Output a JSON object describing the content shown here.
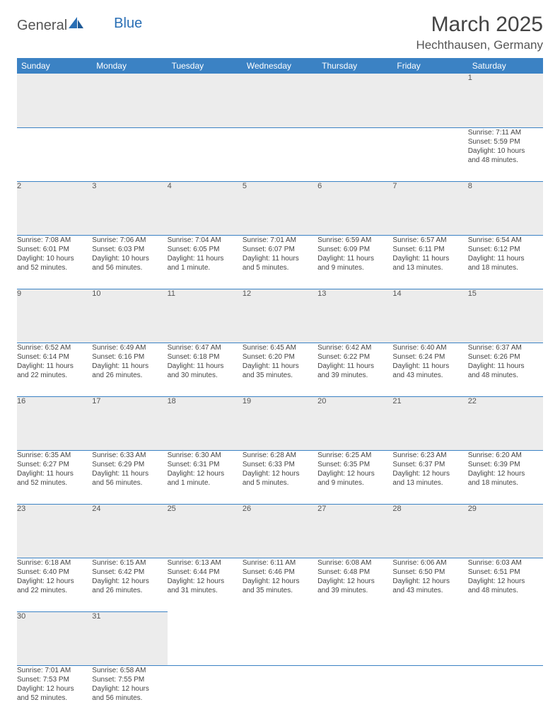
{
  "brand": {
    "part1": "General",
    "part2": "Blue"
  },
  "title": "March 2025",
  "location": "Hechthausen, Germany",
  "colors": {
    "header_bg": "#3b82c4",
    "header_text": "#ffffff",
    "daynum_bg": "#ececec",
    "border": "#3b82c4",
    "text": "#444444",
    "brand_blue": "#2a6fb5"
  },
  "weekdays": [
    "Sunday",
    "Monday",
    "Tuesday",
    "Wednesday",
    "Thursday",
    "Friday",
    "Saturday"
  ],
  "weeks": [
    [
      null,
      null,
      null,
      null,
      null,
      null,
      {
        "n": "1",
        "sr": "Sunrise: 7:11 AM",
        "ss": "Sunset: 5:59 PM",
        "d1": "Daylight: 10 hours",
        "d2": "and 48 minutes."
      }
    ],
    [
      {
        "n": "2",
        "sr": "Sunrise: 7:08 AM",
        "ss": "Sunset: 6:01 PM",
        "d1": "Daylight: 10 hours",
        "d2": "and 52 minutes."
      },
      {
        "n": "3",
        "sr": "Sunrise: 7:06 AM",
        "ss": "Sunset: 6:03 PM",
        "d1": "Daylight: 10 hours",
        "d2": "and 56 minutes."
      },
      {
        "n": "4",
        "sr": "Sunrise: 7:04 AM",
        "ss": "Sunset: 6:05 PM",
        "d1": "Daylight: 11 hours",
        "d2": "and 1 minute."
      },
      {
        "n": "5",
        "sr": "Sunrise: 7:01 AM",
        "ss": "Sunset: 6:07 PM",
        "d1": "Daylight: 11 hours",
        "d2": "and 5 minutes."
      },
      {
        "n": "6",
        "sr": "Sunrise: 6:59 AM",
        "ss": "Sunset: 6:09 PM",
        "d1": "Daylight: 11 hours",
        "d2": "and 9 minutes."
      },
      {
        "n": "7",
        "sr": "Sunrise: 6:57 AM",
        "ss": "Sunset: 6:11 PM",
        "d1": "Daylight: 11 hours",
        "d2": "and 13 minutes."
      },
      {
        "n": "8",
        "sr": "Sunrise: 6:54 AM",
        "ss": "Sunset: 6:12 PM",
        "d1": "Daylight: 11 hours",
        "d2": "and 18 minutes."
      }
    ],
    [
      {
        "n": "9",
        "sr": "Sunrise: 6:52 AM",
        "ss": "Sunset: 6:14 PM",
        "d1": "Daylight: 11 hours",
        "d2": "and 22 minutes."
      },
      {
        "n": "10",
        "sr": "Sunrise: 6:49 AM",
        "ss": "Sunset: 6:16 PM",
        "d1": "Daylight: 11 hours",
        "d2": "and 26 minutes."
      },
      {
        "n": "11",
        "sr": "Sunrise: 6:47 AM",
        "ss": "Sunset: 6:18 PM",
        "d1": "Daylight: 11 hours",
        "d2": "and 30 minutes."
      },
      {
        "n": "12",
        "sr": "Sunrise: 6:45 AM",
        "ss": "Sunset: 6:20 PM",
        "d1": "Daylight: 11 hours",
        "d2": "and 35 minutes."
      },
      {
        "n": "13",
        "sr": "Sunrise: 6:42 AM",
        "ss": "Sunset: 6:22 PM",
        "d1": "Daylight: 11 hours",
        "d2": "and 39 minutes."
      },
      {
        "n": "14",
        "sr": "Sunrise: 6:40 AM",
        "ss": "Sunset: 6:24 PM",
        "d1": "Daylight: 11 hours",
        "d2": "and 43 minutes."
      },
      {
        "n": "15",
        "sr": "Sunrise: 6:37 AM",
        "ss": "Sunset: 6:26 PM",
        "d1": "Daylight: 11 hours",
        "d2": "and 48 minutes."
      }
    ],
    [
      {
        "n": "16",
        "sr": "Sunrise: 6:35 AM",
        "ss": "Sunset: 6:27 PM",
        "d1": "Daylight: 11 hours",
        "d2": "and 52 minutes."
      },
      {
        "n": "17",
        "sr": "Sunrise: 6:33 AM",
        "ss": "Sunset: 6:29 PM",
        "d1": "Daylight: 11 hours",
        "d2": "and 56 minutes."
      },
      {
        "n": "18",
        "sr": "Sunrise: 6:30 AM",
        "ss": "Sunset: 6:31 PM",
        "d1": "Daylight: 12 hours",
        "d2": "and 1 minute."
      },
      {
        "n": "19",
        "sr": "Sunrise: 6:28 AM",
        "ss": "Sunset: 6:33 PM",
        "d1": "Daylight: 12 hours",
        "d2": "and 5 minutes."
      },
      {
        "n": "20",
        "sr": "Sunrise: 6:25 AM",
        "ss": "Sunset: 6:35 PM",
        "d1": "Daylight: 12 hours",
        "d2": "and 9 minutes."
      },
      {
        "n": "21",
        "sr": "Sunrise: 6:23 AM",
        "ss": "Sunset: 6:37 PM",
        "d1": "Daylight: 12 hours",
        "d2": "and 13 minutes."
      },
      {
        "n": "22",
        "sr": "Sunrise: 6:20 AM",
        "ss": "Sunset: 6:39 PM",
        "d1": "Daylight: 12 hours",
        "d2": "and 18 minutes."
      }
    ],
    [
      {
        "n": "23",
        "sr": "Sunrise: 6:18 AM",
        "ss": "Sunset: 6:40 PM",
        "d1": "Daylight: 12 hours",
        "d2": "and 22 minutes."
      },
      {
        "n": "24",
        "sr": "Sunrise: 6:15 AM",
        "ss": "Sunset: 6:42 PM",
        "d1": "Daylight: 12 hours",
        "d2": "and 26 minutes."
      },
      {
        "n": "25",
        "sr": "Sunrise: 6:13 AM",
        "ss": "Sunset: 6:44 PM",
        "d1": "Daylight: 12 hours",
        "d2": "and 31 minutes."
      },
      {
        "n": "26",
        "sr": "Sunrise: 6:11 AM",
        "ss": "Sunset: 6:46 PM",
        "d1": "Daylight: 12 hours",
        "d2": "and 35 minutes."
      },
      {
        "n": "27",
        "sr": "Sunrise: 6:08 AM",
        "ss": "Sunset: 6:48 PM",
        "d1": "Daylight: 12 hours",
        "d2": "and 39 minutes."
      },
      {
        "n": "28",
        "sr": "Sunrise: 6:06 AM",
        "ss": "Sunset: 6:50 PM",
        "d1": "Daylight: 12 hours",
        "d2": "and 43 minutes."
      },
      {
        "n": "29",
        "sr": "Sunrise: 6:03 AM",
        "ss": "Sunset: 6:51 PM",
        "d1": "Daylight: 12 hours",
        "d2": "and 48 minutes."
      }
    ],
    [
      {
        "n": "30",
        "sr": "Sunrise: 7:01 AM",
        "ss": "Sunset: 7:53 PM",
        "d1": "Daylight: 12 hours",
        "d2": "and 52 minutes."
      },
      {
        "n": "31",
        "sr": "Sunrise: 6:58 AM",
        "ss": "Sunset: 7:55 PM",
        "d1": "Daylight: 12 hours",
        "d2": "and 56 minutes."
      },
      null,
      null,
      null,
      null,
      null
    ]
  ]
}
